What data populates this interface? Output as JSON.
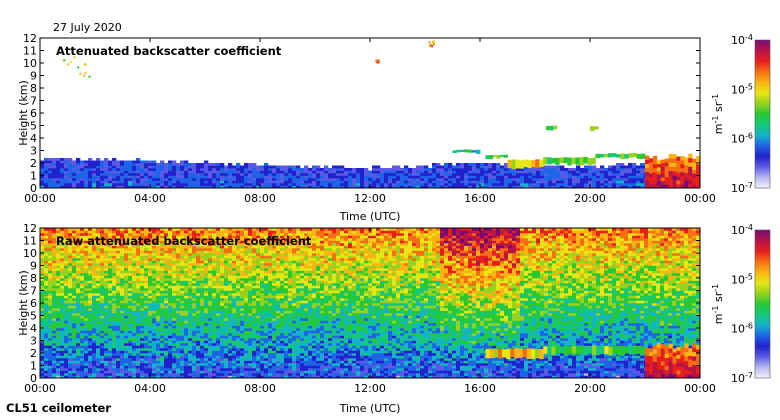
{
  "date_label": "27 July 2020",
  "instrument_label": "CL51 ceilometer",
  "colors": {
    "stops": [
      "#f2f2fa",
      "#b8b8ee",
      "#5a5ae6",
      "#2222cc",
      "#1e64e6",
      "#14b4c8",
      "#14c878",
      "#28c832",
      "#96d21e",
      "#e6e614",
      "#fab414",
      "#f56e14",
      "#e61e1e",
      "#b41446",
      "#780a78"
    ]
  },
  "chart_data": [
    {
      "type": "heatmap",
      "title": "Attenuated backscatter coefficient",
      "xlabel": "Time (UTC)",
      "ylabel": "Height (km)",
      "xticks": [
        "00:00",
        "04:00",
        "08:00",
        "12:00",
        "16:00",
        "20:00",
        "00:00"
      ],
      "xlim_hours": [
        0,
        24
      ],
      "yticks": [
        "0",
        "1",
        "2",
        "3",
        "4",
        "5",
        "6",
        "7",
        "8",
        "9",
        "10",
        "11",
        "12"
      ],
      "ylim_km": [
        0,
        12
      ],
      "colorbar": {
        "label_base": "m",
        "label_exp1": "-1",
        "label_mid": " sr",
        "label_exp2": "-1",
        "ticks": [
          {
            "base": "10",
            "exp": "-4"
          },
          {
            "base": "10",
            "exp": "-5"
          },
          {
            "base": "10",
            "exp": "-6"
          },
          {
            "base": "10",
            "exp": "-7"
          }
        ],
        "range_log10": [
          -7,
          -4
        ]
      },
      "features": {
        "boundary_layer_top_km": [
          [
            0,
            2.4
          ],
          [
            3,
            2.3
          ],
          [
            6,
            2.0
          ],
          [
            9,
            1.8
          ],
          [
            12,
            1.6
          ],
          [
            14,
            1.8
          ],
          [
            16,
            2.0
          ],
          [
            18,
            1.8
          ],
          [
            20,
            1.7
          ],
          [
            22,
            2.0
          ],
          [
            24,
            2.1
          ]
        ],
        "cloud_layers": [
          {
            "start_h": 15.0,
            "end_h": 16.0,
            "top_km": 3.1,
            "base_km": 2.7,
            "level": -5.8
          },
          {
            "start_h": 16.2,
            "end_h": 17.0,
            "top_km": 2.7,
            "base_km": 2.3,
            "level": -5.5
          },
          {
            "start_h": 17.0,
            "end_h": 18.3,
            "top_km": 2.3,
            "base_km": 1.5,
            "level": -5.0
          },
          {
            "start_h": 18.3,
            "end_h": 20.2,
            "top_km": 2.5,
            "base_km": 1.8,
            "level": -5.5
          },
          {
            "start_h": 20.2,
            "end_h": 22.0,
            "top_km": 2.8,
            "base_km": 2.3,
            "level": -5.5
          },
          {
            "start_h": 18.4,
            "end_h": 18.8,
            "top_km": 5.0,
            "base_km": 4.6,
            "level": -5.6
          },
          {
            "start_h": 20.0,
            "end_h": 20.3,
            "top_km": 5.0,
            "base_km": 4.5,
            "level": -5.6
          }
        ],
        "fog_event": {
          "start_h": 22.0,
          "end_h": 24.0,
          "top_km": 2.8,
          "level": -4.3
        },
        "high_cloud_specks": [
          {
            "start_h": 0.6,
            "end_h": 1.8,
            "top_km": 10.8,
            "base_km": 8.8,
            "level": -5.2
          },
          {
            "start_h": 14.1,
            "end_h": 14.3,
            "top_km": 11.8,
            "base_km": 11.4,
            "level": -4.8
          },
          {
            "start_h": 12.2,
            "end_h": 12.3,
            "top_km": 10.3,
            "base_km": 10.1,
            "level": -4.7
          }
        ]
      }
    },
    {
      "type": "heatmap",
      "title": "Raw attenuated backscatter coefficient",
      "xlabel": "Time (UTC)",
      "ylabel": "Height (km)",
      "xticks": [
        "00:00",
        "04:00",
        "08:00",
        "12:00",
        "16:00",
        "20:00",
        "00:00"
      ],
      "xlim_hours": [
        0,
        24
      ],
      "yticks": [
        "0",
        "1",
        "2",
        "3",
        "4",
        "5",
        "6",
        "7",
        "8",
        "9",
        "10",
        "11",
        "12"
      ],
      "ylim_km": [
        0,
        12
      ],
      "colorbar": {
        "label_base": "m",
        "label_exp1": "-1",
        "label_mid": " sr",
        "label_exp2": "-1",
        "ticks": [
          {
            "base": "10",
            "exp": "-4"
          },
          {
            "base": "10",
            "exp": "-5"
          },
          {
            "base": "10",
            "exp": "-6"
          },
          {
            "base": "10",
            "exp": "-7"
          }
        ],
        "range_log10": [
          -7,
          -4
        ]
      },
      "features": {
        "noise_floor_level": -6.3,
        "noise_increase_with_height": 0.13,
        "daylight_noise_window_h": [
          14.5,
          17.5
        ],
        "cloud_layers": [
          {
            "start_h": 15.0,
            "end_h": 16.0,
            "top_km": 3.0,
            "base_km": 2.7,
            "level": -5.6
          },
          {
            "start_h": 16.2,
            "end_h": 18.3,
            "top_km": 2.4,
            "base_km": 1.5,
            "level": -5.0
          },
          {
            "start_h": 18.3,
            "end_h": 22.0,
            "top_km": 2.6,
            "base_km": 1.8,
            "level": -5.4
          }
        ],
        "fog_event": {
          "start_h": 22.0,
          "end_h": 24.0,
          "top_km": 2.9,
          "level": -4.3
        }
      }
    }
  ]
}
